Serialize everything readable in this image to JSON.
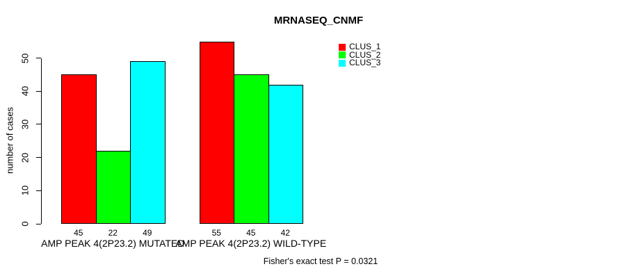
{
  "title": "MRNASEQ_CNMF",
  "chart_data": {
    "type": "bar",
    "title": "MRNASEQ_CNMF",
    "xlabel": "",
    "ylabel": "number of cases",
    "categories": [
      "AMP PEAK 4(2P23.2) MUTATED",
      "AMP PEAK 4(2P23.2) WILD-TYPE"
    ],
    "series": [
      {
        "name": "CLUS_1",
        "color": "#ff0000",
        "values": [
          45,
          55
        ]
      },
      {
        "name": "CLUS_2",
        "color": "#00ff00",
        "values": [
          22,
          45
        ]
      },
      {
        "name": "CLUS_3",
        "color": "#00ffff",
        "values": [
          49,
          42
        ]
      }
    ],
    "bar_value_labels": [
      [
        45,
        22,
        49
      ],
      [
        55,
        45,
        42
      ]
    ],
    "yticks": [
      0,
      10,
      20,
      30,
      40,
      50
    ],
    "ylim": [
      0,
      57
    ],
    "grid": false,
    "legend_position": "top-right",
    "legend_entries": [
      "CLUS_1",
      "CLUS_2",
      "CLUS_3"
    ],
    "bar_border_color": "#000000",
    "background_color": "#ffffff",
    "annotation": "Fisher's exact test P = 0.0321"
  }
}
